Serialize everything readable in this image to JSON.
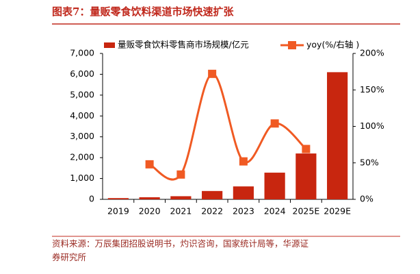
{
  "chart_data": {
    "type": "bar_line",
    "title": "图表7：量贩零食饮料渠道市场快速扩张",
    "source": "资料来源：万辰集团招股说明书，灼识咨询，国家统计局等，华源证券研究所",
    "categories": [
      "2019",
      "2020",
      "2021",
      "2022",
      "2023",
      "2024",
      "2025E",
      "2029E"
    ],
    "series": [
      {
        "name": "量贩零食饮料零售商市场规模/亿元",
        "type": "bar",
        "color": "#c8260f",
        "values": [
          60,
          100,
          150,
          400,
          620,
          1280,
          2200,
          6100
        ]
      },
      {
        "name": "yoy(%/右轴 )",
        "type": "line",
        "axis": "y2",
        "color": "#f05a23",
        "values": [
          null,
          48,
          34,
          172,
          52,
          104,
          69,
          null
        ]
      }
    ],
    "ylim": [
      0,
      7000
    ],
    "yticks": [
      0,
      {
        "value": 1000,
        "label": "1,000"
      },
      {
        "value": 2000,
        "label": "2,000"
      },
      {
        "value": 3000,
        "label": "3,000"
      },
      {
        "value": 4000,
        "label": "4,000"
      },
      {
        "value": 5000,
        "label": "5,000"
      },
      {
        "value": 6000,
        "label": "6,000"
      },
      {
        "value": 7000,
        "label": "7,000"
      }
    ],
    "y2lim": [
      0,
      200
    ],
    "y2ticks": [
      {
        "value": 0,
        "label": "0%"
      },
      {
        "value": 50,
        "label": "50%"
      },
      {
        "value": 100,
        "label": "100%"
      },
      {
        "value": 150,
        "label": "150%"
      },
      {
        "value": 200,
        "label": "200%"
      }
    ],
    "grid": false
  }
}
